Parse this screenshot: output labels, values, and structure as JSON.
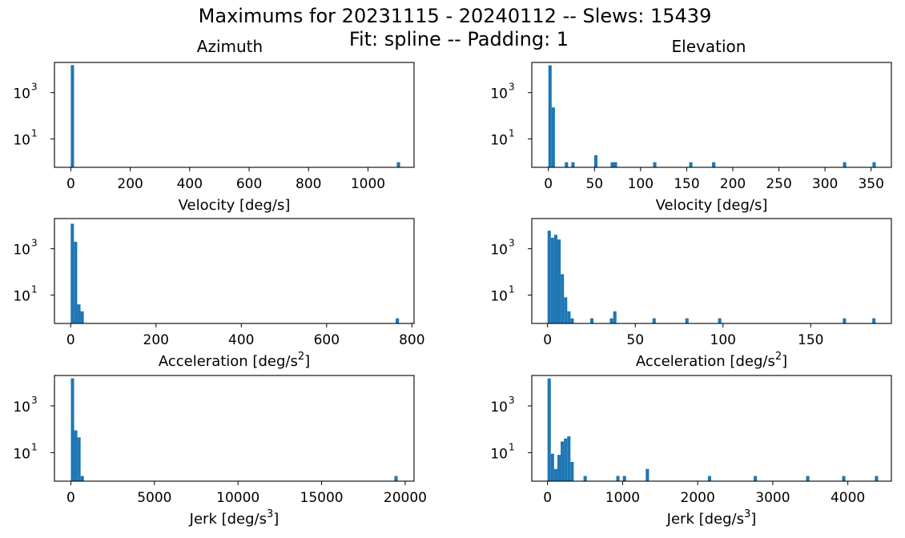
{
  "figure": {
    "title_line1": "Maximums for 20231115 - 20240112 -- Slews: 15439",
    "title_line2": "Fit: spline -- Padding: 1",
    "col_titles": [
      "Azimuth",
      "Elevation"
    ],
    "bar_color": "#1f77b4"
  },
  "chart_data": [
    {
      "type": "bar",
      "column": "Azimuth",
      "xlabel": "Velocity [deg/s]",
      "xlabel_base": "Velocity [deg/s]",
      "xlabel_sup": "",
      "xlabel_tail": "",
      "xscale": "linear",
      "yscale": "log",
      "xticks": [
        0,
        200,
        400,
        600,
        800,
        1000
      ],
      "xlim": [
        -55,
        1155
      ],
      "yticks": [
        {
          "value": 10,
          "base": "10",
          "exp": "1"
        },
        {
          "value": 1000,
          "base": "10",
          "exp": "3"
        }
      ],
      "ylim": [
        0.6,
        20000
      ],
      "bin_width": 11,
      "bins": [
        [
          0,
          15300
        ],
        [
          1097,
          1
        ]
      ]
    },
    {
      "type": "bar",
      "column": "Elevation",
      "xlabel": "Velocity [deg/s]",
      "xlabel_base": "Velocity [deg/s]",
      "xlabel_sup": "",
      "xlabel_tail": "",
      "xscale": "linear",
      "yscale": "log",
      "xticks": [
        0,
        50,
        100,
        150,
        200,
        250,
        300,
        350
      ],
      "xlim": [
        -18,
        372
      ],
      "yticks": [
        {
          "value": 10,
          "base": "10",
          "exp": "1"
        },
        {
          "value": 1000,
          "base": "10",
          "exp": "3"
        }
      ],
      "ylim": [
        0.6,
        20000
      ],
      "bin_width": 3.55,
      "bins": [
        [
          0,
          15000
        ],
        [
          3.55,
          230
        ],
        [
          17.8,
          1
        ],
        [
          24.9,
          1
        ],
        [
          49.7,
          2
        ],
        [
          67.5,
          1
        ],
        [
          71,
          1
        ],
        [
          113.6,
          1
        ],
        [
          152.7,
          1
        ],
        [
          177.5,
          1
        ],
        [
          319.5,
          1
        ],
        [
          351.5,
          1
        ]
      ]
    },
    {
      "type": "bar",
      "column": "Azimuth",
      "xlabel": "Acceleration [deg/s2]",
      "xlabel_base": "Acceleration [deg/s",
      "xlabel_sup": "2",
      "xlabel_tail": "]",
      "xscale": "linear",
      "yscale": "log",
      "xticks": [
        0,
        200,
        400,
        600,
        800
      ],
      "xlim": [
        -38,
        805
      ],
      "yticks": [
        {
          "value": 10,
          "base": "10",
          "exp": "1"
        },
        {
          "value": 1000,
          "base": "10",
          "exp": "3"
        }
      ],
      "ylim": [
        0.6,
        20000
      ],
      "bin_width": 7.7,
      "bins": [
        [
          0,
          12000
        ],
        [
          7.7,
          2000
        ],
        [
          15.4,
          4
        ],
        [
          23.1,
          2
        ],
        [
          762,
          1
        ]
      ]
    },
    {
      "type": "bar",
      "column": "Elevation",
      "xlabel": "Acceleration [deg/s2]",
      "xlabel_base": "Acceleration [deg/s",
      "xlabel_sup": "2",
      "xlabel_tail": "]",
      "xscale": "linear",
      "yscale": "log",
      "xticks": [
        0,
        50,
        100,
        150
      ],
      "xlim": [
        -9,
        196
      ],
      "yticks": [
        {
          "value": 10,
          "base": "10",
          "exp": "1"
        },
        {
          "value": 1000,
          "base": "10",
          "exp": "3"
        }
      ],
      "ylim": [
        0.6,
        20000
      ],
      "bin_width": 1.87,
      "bins": [
        [
          0,
          6000
        ],
        [
          1.87,
          3000
        ],
        [
          3.74,
          4000
        ],
        [
          5.61,
          2500
        ],
        [
          7.48,
          80
        ],
        [
          9.35,
          8
        ],
        [
          11.22,
          2
        ],
        [
          13.09,
          1
        ],
        [
          24.3,
          1
        ],
        [
          35.5,
          1
        ],
        [
          37.4,
          2
        ],
        [
          59.8,
          1
        ],
        [
          78.5,
          1
        ],
        [
          97.2,
          1
        ],
        [
          168.3,
          1
        ],
        [
          185.1,
          1
        ]
      ]
    },
    {
      "type": "bar",
      "column": "Azimuth",
      "xlabel": "Jerk [deg/s3]",
      "xlabel_base": "Jerk [deg/s",
      "xlabel_sup": "3",
      "xlabel_tail": "]",
      "xscale": "linear",
      "yscale": "log",
      "xticks": [
        0,
        5000,
        10000,
        15000,
        20000
      ],
      "xlim": [
        -980,
        20530
      ],
      "yticks": [
        {
          "value": 10,
          "base": "10",
          "exp": "1"
        },
        {
          "value": 1000,
          "base": "10",
          "exp": "3"
        }
      ],
      "ylim": [
        0.6,
        20000
      ],
      "bin_width": 195,
      "bins": [
        [
          0,
          15000
        ],
        [
          195,
          90
        ],
        [
          390,
          45
        ],
        [
          585,
          1
        ],
        [
          19355,
          1
        ]
      ]
    },
    {
      "type": "bar",
      "column": "Elevation",
      "xlabel": "Jerk [deg/s3]",
      "xlabel_base": "Jerk [deg/s",
      "xlabel_sup": "3",
      "xlabel_tail": "]",
      "xscale": "linear",
      "yscale": "log",
      "xticks": [
        0,
        1000,
        2000,
        3000,
        4000
      ],
      "xlim": [
        -210,
        4580
      ],
      "yticks": [
        {
          "value": 10,
          "base": "10",
          "exp": "1"
        },
        {
          "value": 1000,
          "base": "10",
          "exp": "3"
        }
      ],
      "ylim": [
        0.6,
        20000
      ],
      "bin_width": 43.6,
      "bins": [
        [
          0,
          15000
        ],
        [
          43.6,
          9
        ],
        [
          87.2,
          2
        ],
        [
          130.8,
          8
        ],
        [
          174.4,
          30
        ],
        [
          218,
          40
        ],
        [
          261.6,
          50
        ],
        [
          305.2,
          4
        ],
        [
          479.6,
          1
        ],
        [
          915.6,
          1
        ],
        [
          1002.8,
          1
        ],
        [
          1308,
          2
        ],
        [
          2136,
          1
        ],
        [
          2746,
          1
        ],
        [
          3444,
          1
        ],
        [
          3924,
          1
        ],
        [
          4360,
          1
        ]
      ]
    }
  ]
}
